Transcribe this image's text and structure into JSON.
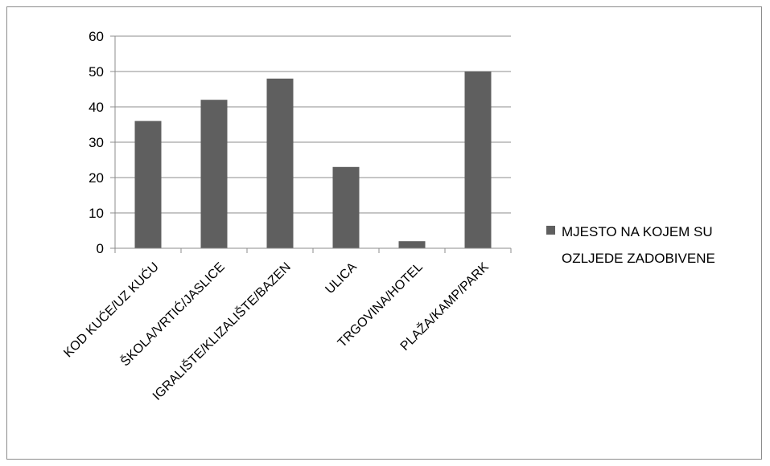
{
  "chart_data": {
    "type": "bar",
    "categories": [
      "KOD KUĆE/UZ KUĆU",
      "ŠKOLA/VRTIĆ/JASLICE",
      "IGRALIŠTE/KLIZALIŠTE/BAZEN",
      "ULICA",
      "TRGOVINA/HOTEL",
      "PLAŽA/KAMP/PARK"
    ],
    "series": [
      {
        "name": "MJESTO NA KOJEM SU OZLJEDE ZADOBIVENE",
        "values": [
          36,
          42,
          48,
          23,
          2,
          50
        ],
        "color": "#5f5f5f"
      }
    ],
    "legend": {
      "position": "right",
      "lines": [
        "MJESTO NA KOJEM SU",
        "OZLJEDE ZADOBIVENE"
      ]
    },
    "yticks": [
      "0",
      "10",
      "20",
      "30",
      "40",
      "50",
      "60"
    ],
    "ylim": [
      0,
      60
    ],
    "grid": true,
    "title": "",
    "xlabel": "",
    "ylabel": ""
  }
}
